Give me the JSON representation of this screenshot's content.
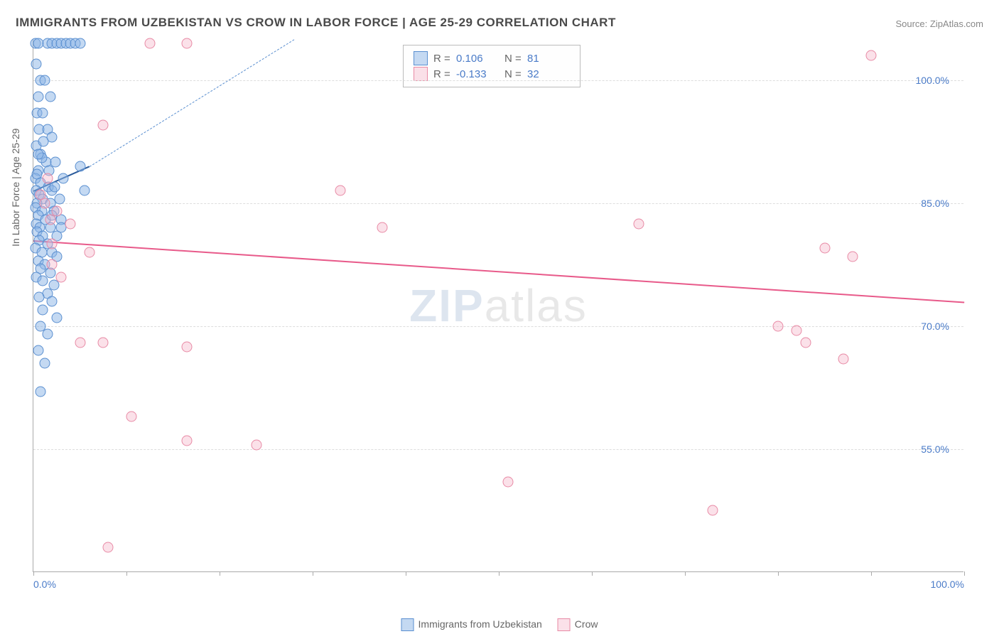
{
  "title": "IMMIGRANTS FROM UZBEKISTAN VS CROW IN LABOR FORCE | AGE 25-29 CORRELATION CHART",
  "source_label": "Source: ",
  "source_name": "ZipAtlas.com",
  "ylabel": "In Labor Force | Age 25-29",
  "watermark_zip": "ZIP",
  "watermark_atlas": "atlas",
  "chart": {
    "type": "scatter",
    "background_color": "#ffffff",
    "grid_color": "#dddddd",
    "axis_color": "#aaaaaa",
    "tick_label_color": "#4a7bc8",
    "tick_fontsize": 14,
    "title_fontsize": 17,
    "title_color": "#4a4a4a",
    "label_fontsize": 14,
    "label_color": "#666666",
    "marker_size": 15,
    "xlim": [
      0,
      100
    ],
    "ylim": [
      40,
      105
    ],
    "yticks": [
      55.0,
      70.0,
      85.0,
      100.0
    ],
    "ytick_labels": [
      "55.0%",
      "70.0%",
      "85.0%",
      "100.0%"
    ],
    "xticks": [
      0,
      10,
      20,
      30,
      40,
      50,
      60,
      70,
      80,
      90,
      100
    ],
    "xtick_labels": {
      "0": "0.0%",
      "100": "100.0%"
    },
    "series": [
      {
        "name": "Immigrants from Uzbekistan",
        "color_fill": "rgba(138,180,230,0.5)",
        "color_stroke": "#5a8fd0",
        "color_hex": "#8ab4e6",
        "R": 0.106,
        "N": 81,
        "trend": {
          "x1": 0,
          "y1": 86.5,
          "x2": 6,
          "y2": 89.5,
          "color": "#2a5a9a",
          "width": 2
        },
        "trend_dashed_extension": {
          "x1": 6,
          "y1": 89.5,
          "x2": 28,
          "y2": 105,
          "color": "#5a8fd0",
          "dash": true
        },
        "points": [
          [
            0.2,
            104.5
          ],
          [
            0.5,
            104.5
          ],
          [
            1.5,
            104.5
          ],
          [
            2.0,
            104.5
          ],
          [
            2.5,
            104.5
          ],
          [
            3.0,
            104.5
          ],
          [
            3.5,
            104.5
          ],
          [
            4.0,
            104.5
          ],
          [
            4.5,
            104.5
          ],
          [
            5.0,
            104.5
          ],
          [
            0.3,
            102
          ],
          [
            0.8,
            100
          ],
          [
            1.2,
            100
          ],
          [
            0.5,
            98
          ],
          [
            1.8,
            98
          ],
          [
            0.4,
            96
          ],
          [
            1.0,
            96
          ],
          [
            0.6,
            94
          ],
          [
            1.5,
            94
          ],
          [
            2.0,
            93
          ],
          [
            0.3,
            92
          ],
          [
            0.8,
            91
          ],
          [
            1.4,
            90
          ],
          [
            2.4,
            90
          ],
          [
            0.5,
            89
          ],
          [
            5.0,
            89.5
          ],
          [
            0.2,
            88
          ],
          [
            3.2,
            88
          ],
          [
            0.8,
            87.5
          ],
          [
            1.6,
            87
          ],
          [
            0.3,
            86.5
          ],
          [
            2.0,
            86.5
          ],
          [
            0.6,
            86
          ],
          [
            1.0,
            85.5
          ],
          [
            2.8,
            85.5
          ],
          [
            0.4,
            85
          ],
          [
            1.8,
            85
          ],
          [
            0.2,
            84.5
          ],
          [
            0.9,
            84
          ],
          [
            2.2,
            84
          ],
          [
            0.5,
            83.5
          ],
          [
            1.3,
            83
          ],
          [
            3.0,
            83
          ],
          [
            0.3,
            82.5
          ],
          [
            0.7,
            82
          ],
          [
            1.8,
            82
          ],
          [
            0.4,
            81.5
          ],
          [
            1.0,
            81
          ],
          [
            2.5,
            81
          ],
          [
            0.6,
            80.5
          ],
          [
            1.5,
            80
          ],
          [
            0.2,
            79.5
          ],
          [
            0.9,
            79
          ],
          [
            2.0,
            79
          ],
          [
            5.5,
            86.5
          ],
          [
            0.5,
            78
          ],
          [
            1.2,
            77.5
          ],
          [
            2.5,
            78.5
          ],
          [
            0.8,
            77
          ],
          [
            1.8,
            76.5
          ],
          [
            0.3,
            76
          ],
          [
            1.0,
            75.5
          ],
          [
            2.2,
            75
          ],
          [
            1.5,
            74
          ],
          [
            0.6,
            73.5
          ],
          [
            2.0,
            73
          ],
          [
            1.0,
            72
          ],
          [
            2.5,
            71
          ],
          [
            0.8,
            70
          ],
          [
            1.5,
            69
          ],
          [
            0.5,
            67
          ],
          [
            1.2,
            65.5
          ],
          [
            0.8,
            62
          ],
          [
            2.0,
            83.5
          ],
          [
            3.0,
            82
          ],
          [
            0.4,
            88.5
          ],
          [
            1.7,
            89
          ],
          [
            0.9,
            90.5
          ],
          [
            2.3,
            87
          ],
          [
            0.5,
            91
          ],
          [
            1.1,
            92.5
          ]
        ]
      },
      {
        "name": "Crow",
        "color_fill": "rgba(245,180,200,0.4)",
        "color_stroke": "#e88aa5",
        "color_hex": "#f5b4c8",
        "R": -0.133,
        "N": 32,
        "trend": {
          "x1": 0,
          "y1": 80.5,
          "x2": 100,
          "y2": 73,
          "color": "#e85a8a",
          "width": 2.5
        },
        "points": [
          [
            12.5,
            104.5
          ],
          [
            16.5,
            104.5
          ],
          [
            90,
            103
          ],
          [
            7.5,
            94.5
          ],
          [
            1.2,
            85
          ],
          [
            2.5,
            84
          ],
          [
            1.8,
            83
          ],
          [
            33,
            86.5
          ],
          [
            37.5,
            82
          ],
          [
            6.0,
            79
          ],
          [
            2.0,
            77.5
          ],
          [
            3.0,
            76
          ],
          [
            65,
            82.5
          ],
          [
            85,
            79.5
          ],
          [
            88,
            78.5
          ],
          [
            5.0,
            68
          ],
          [
            7.5,
            68
          ],
          [
            16.5,
            67.5
          ],
          [
            80,
            70
          ],
          [
            82,
            69.5
          ],
          [
            83,
            68
          ],
          [
            87,
            66
          ],
          [
            10.5,
            59
          ],
          [
            16.5,
            56
          ],
          [
            24,
            55.5
          ],
          [
            73,
            47.5
          ],
          [
            51,
            51
          ],
          [
            8.0,
            43
          ],
          [
            2.0,
            80
          ],
          [
            4.0,
            82.5
          ],
          [
            0.8,
            86
          ],
          [
            1.5,
            88
          ]
        ]
      }
    ]
  },
  "legend_top": {
    "border_color": "#bbbbbb",
    "rows": [
      {
        "swatch": "blue",
        "r_label": "R =",
        "r_val": "0.106",
        "n_label": "N =",
        "n_val": "81"
      },
      {
        "swatch": "pink",
        "r_label": "R =",
        "r_val": "-0.133",
        "n_label": "N =",
        "n_val": "32"
      }
    ]
  },
  "legend_bottom": {
    "items": [
      {
        "swatch": "blue",
        "label": "Immigrants from Uzbekistan"
      },
      {
        "swatch": "pink",
        "label": "Crow"
      }
    ]
  }
}
